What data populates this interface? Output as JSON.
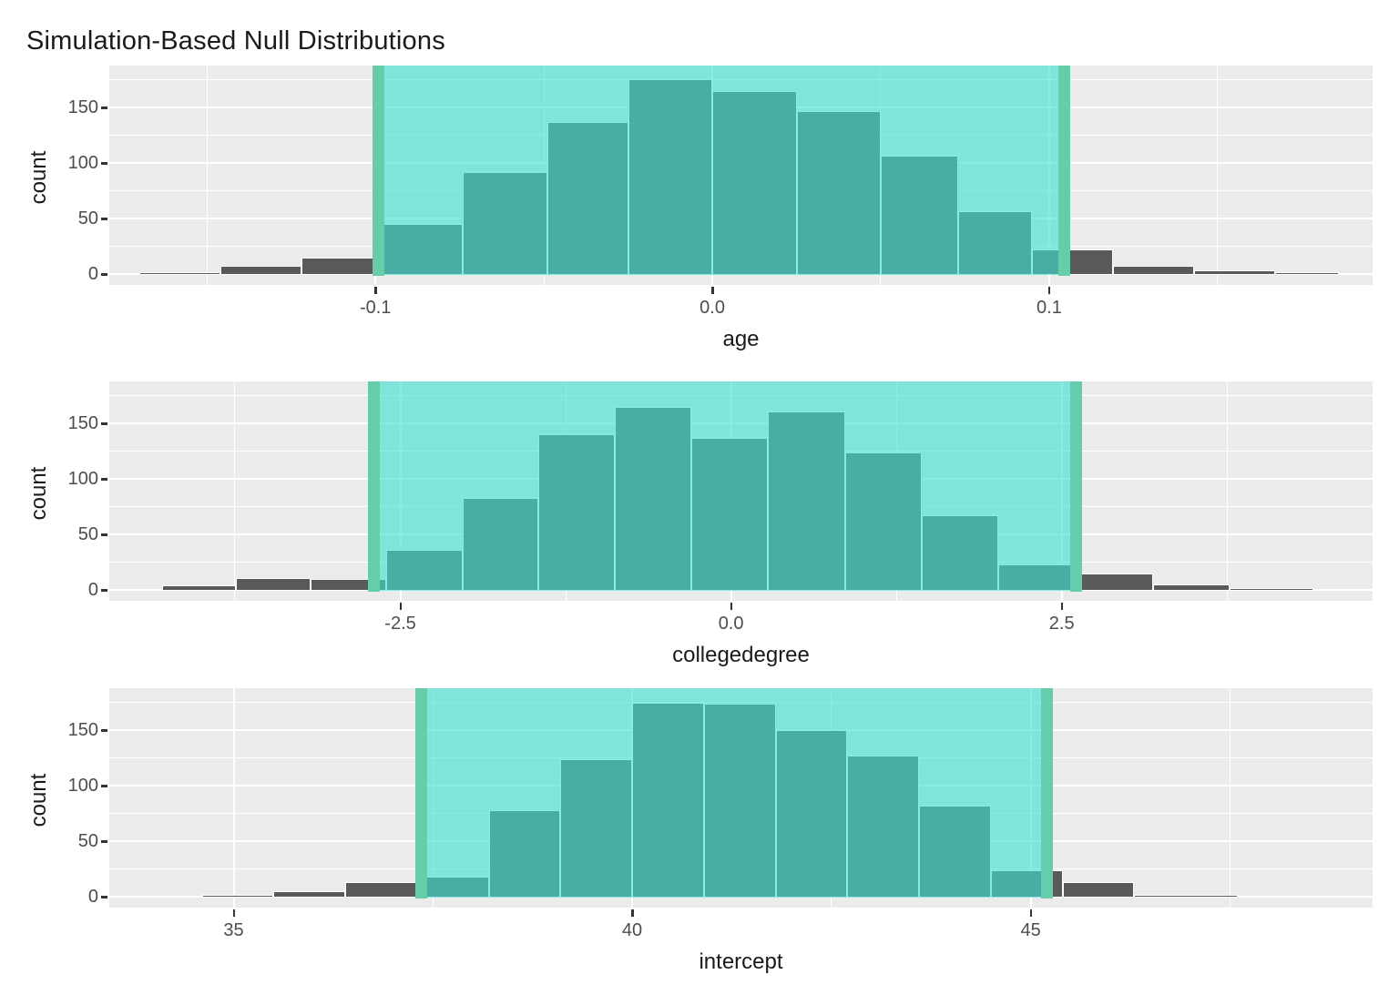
{
  "title": "Simulation-Based Null Distributions",
  "colors": {
    "panel_bg": "#EBEBEB",
    "grid": "#FFFFFF",
    "bar_fill": "#595959",
    "bar_border": "#FFFFFF",
    "ci_fill": "rgba(64,224,208,0.62)",
    "ci_line": "#66CDAA",
    "tick_text": "#4D4D4D",
    "axis_title_text": "#1a1a1a",
    "title_text": "#1a1a1a"
  },
  "chart_data": [
    {
      "type": "bar",
      "subtype": "histogram",
      "xlabel": "age",
      "ylabel": "count",
      "x_domain": [
        -0.179,
        0.196
      ],
      "y_domain": [
        0,
        188
      ],
      "grid": "on",
      "x_ticks": [
        {
          "v": -0.1,
          "label": "-0.1"
        },
        {
          "v": 0.0,
          "label": "0.0"
        },
        {
          "v": 0.1,
          "label": "0.1"
        }
      ],
      "x_minor_ticks": [
        -0.15,
        -0.05,
        0.05,
        0.15
      ],
      "y_ticks": [
        {
          "v": 0,
          "label": "0"
        },
        {
          "v": 50,
          "label": "50"
        },
        {
          "v": 100,
          "label": "100"
        },
        {
          "v": 150,
          "label": "150"
        }
      ],
      "y_minor_ticks": [
        25,
        75,
        125,
        175
      ],
      "ci_shaded_region": [
        -0.099,
        0.1045
      ],
      "bins": [
        [
          -0.17,
          -0.146,
          1
        ],
        [
          -0.146,
          -0.122,
          7
        ],
        [
          -0.122,
          -0.099,
          15
        ],
        [
          -0.099,
          -0.074,
          45
        ],
        [
          -0.074,
          -0.049,
          92
        ],
        [
          -0.049,
          -0.025,
          137
        ],
        [
          -0.025,
          0.0,
          176
        ],
        [
          0.0,
          0.025,
          165
        ],
        [
          0.025,
          0.05,
          147
        ],
        [
          0.05,
          0.073,
          107
        ],
        [
          0.073,
          0.095,
          57
        ],
        [
          0.095,
          0.119,
          22
        ],
        [
          0.119,
          0.143,
          7
        ],
        [
          0.143,
          0.167,
          3
        ],
        [
          0.167,
          0.186,
          2
        ]
      ]
    },
    {
      "type": "bar",
      "subtype": "histogram",
      "xlabel": "collegedegree",
      "ylabel": "count",
      "x_domain": [
        -4.7,
        4.85
      ],
      "y_domain": [
        0,
        188
      ],
      "grid": "on",
      "x_ticks": [
        {
          "v": -2.5,
          "label": "-2.5"
        },
        {
          "v": 0.0,
          "label": "0.0"
        },
        {
          "v": 2.5,
          "label": "2.5"
        }
      ],
      "x_minor_ticks": [
        -3.75,
        -1.25,
        1.25,
        3.75
      ],
      "y_ticks": [
        {
          "v": 0,
          "label": "0"
        },
        {
          "v": 50,
          "label": "50"
        },
        {
          "v": 100,
          "label": "100"
        },
        {
          "v": 150,
          "label": "150"
        }
      ],
      "y_minor_ticks": [
        25,
        75,
        125,
        175
      ],
      "ci_shaded_region": [
        -2.7,
        2.61
      ],
      "bins": [
        [
          -4.3,
          -3.74,
          4
        ],
        [
          -3.74,
          -3.18,
          11
        ],
        [
          -3.18,
          -2.61,
          10
        ],
        [
          -2.61,
          -2.03,
          36
        ],
        [
          -2.03,
          -1.46,
          83
        ],
        [
          -1.46,
          -0.88,
          140
        ],
        [
          -0.88,
          -0.3,
          165
        ],
        [
          -0.3,
          0.28,
          137
        ],
        [
          0.28,
          0.86,
          161
        ],
        [
          0.86,
          1.44,
          124
        ],
        [
          1.44,
          2.02,
          67
        ],
        [
          2.02,
          2.61,
          23
        ],
        [
          2.61,
          3.19,
          15
        ],
        [
          3.19,
          3.77,
          5
        ],
        [
          3.77,
          4.4,
          1
        ]
      ]
    },
    {
      "type": "bar",
      "subtype": "histogram",
      "xlabel": "intercept",
      "ylabel": "count",
      "x_domain": [
        33.44,
        49.29
      ],
      "y_domain": [
        0,
        188
      ],
      "grid": "on",
      "x_ticks": [
        {
          "v": 35,
          "label": "35"
        },
        {
          "v": 40,
          "label": "40"
        },
        {
          "v": 45,
          "label": "45"
        }
      ],
      "x_minor_ticks": [
        32.5,
        37.5,
        42.5,
        47.5
      ],
      "y_ticks": [
        {
          "v": 0,
          "label": "0"
        },
        {
          "v": 50,
          "label": "50"
        },
        {
          "v": 100,
          "label": "100"
        },
        {
          "v": 150,
          "label": "150"
        }
      ],
      "y_minor_ticks": [
        25,
        75,
        125,
        175
      ],
      "ci_shaded_region": [
        37.35,
        45.2
      ],
      "bins": [
        [
          34.6,
          35.5,
          2
        ],
        [
          35.5,
          36.4,
          5
        ],
        [
          36.4,
          37.3,
          13
        ],
        [
          37.3,
          38.2,
          18
        ],
        [
          38.2,
          39.1,
          78
        ],
        [
          39.1,
          40.0,
          124
        ],
        [
          40.0,
          40.9,
          175
        ],
        [
          40.9,
          41.8,
          174
        ],
        [
          41.8,
          42.7,
          150
        ],
        [
          42.7,
          43.6,
          127
        ],
        [
          43.6,
          44.5,
          82
        ],
        [
          44.5,
          45.4,
          24
        ],
        [
          45.4,
          46.3,
          13
        ],
        [
          46.3,
          47.6,
          1
        ]
      ]
    }
  ]
}
